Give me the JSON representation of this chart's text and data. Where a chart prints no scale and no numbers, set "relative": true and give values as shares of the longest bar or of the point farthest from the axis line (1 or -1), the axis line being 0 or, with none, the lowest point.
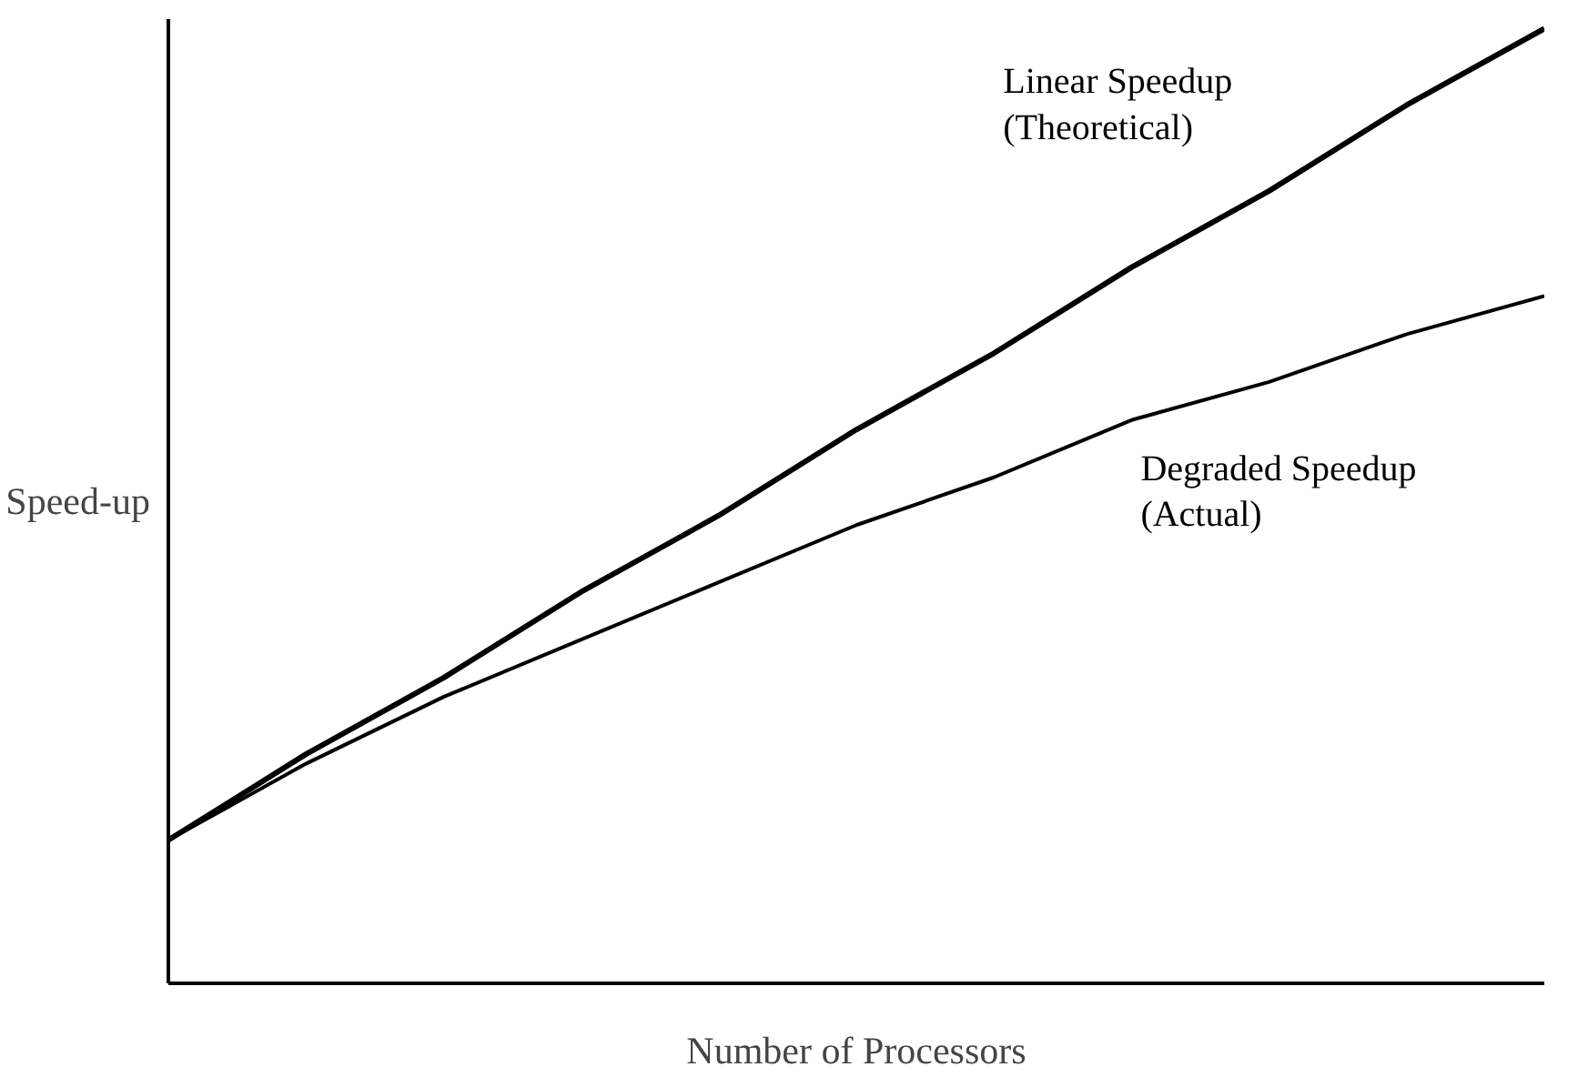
{
  "chart_data": {
    "type": "line",
    "relative": true,
    "xlabel": "Number of Processors",
    "ylabel": "Speed-up",
    "legend": false,
    "marker": "none",
    "line_style": "solid",
    "categories": [
      null,
      null,
      null,
      null,
      null,
      null,
      null,
      null,
      null,
      null,
      null
    ],
    "series": [
      {
        "name": "Linear Speedup\n(Theoretical)",
        "color": "#000000",
        "values": [
          0.15,
          0.24,
          0.32,
          0.41,
          0.49,
          0.58,
          0.66,
          0.75,
          0.83,
          0.92,
          1.0
        ]
      },
      {
        "name": "Degraded Speedup\n(Actual)",
        "color": "#000000",
        "values": [
          0.15,
          0.23,
          0.3,
          0.36,
          0.42,
          0.48,
          0.53,
          0.59,
          0.63,
          0.68,
          0.72
        ]
      }
    ]
  }
}
